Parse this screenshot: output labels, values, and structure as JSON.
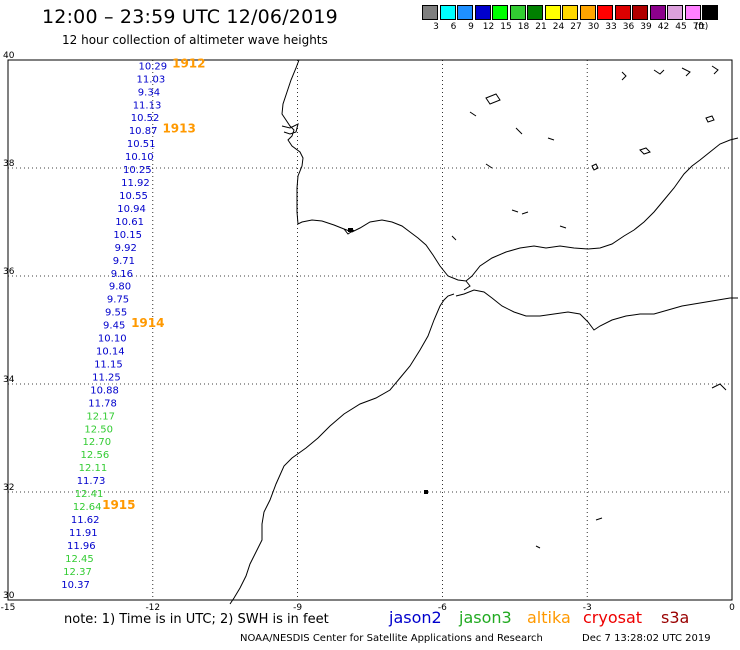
{
  "header": {
    "title": "12:00 – 23:59 UTC 12/06/2019",
    "subtitle": "12 hour collection of altimeter wave heights"
  },
  "colorbar": {
    "unit": "(ft)",
    "levels": [
      {
        "label": "3",
        "color": "#7f7f7f"
      },
      {
        "label": "6",
        "color": "#00ffff"
      },
      {
        "label": "9",
        "color": "#1e90ff"
      },
      {
        "label": "12",
        "color": "#0000cd"
      },
      {
        "label": "15",
        "color": "#00ff00"
      },
      {
        "label": "18",
        "color": "#32cd32"
      },
      {
        "label": "21",
        "color": "#008000"
      },
      {
        "label": "24",
        "color": "#ffff00"
      },
      {
        "label": "27",
        "color": "#ffd700"
      },
      {
        "label": "30",
        "color": "#ffa500"
      },
      {
        "label": "33",
        "color": "#ff0000"
      },
      {
        "label": "36",
        "color": "#dc0000"
      },
      {
        "label": "39",
        "color": "#b00000"
      },
      {
        "label": "42",
        "color": "#8b008b"
      },
      {
        "label": "45",
        "color": "#dda0dd"
      },
      {
        "label": "70",
        "color": "#ff80ff"
      },
      {
        "label": "",
        "color": "#000000"
      }
    ]
  },
  "map": {
    "lat_range": [
      30,
      40
    ],
    "lon_range": [
      -15,
      0
    ],
    "lat_ticks": [
      "40",
      "38",
      "36",
      "34",
      "32",
      "30"
    ],
    "lon_ticks": [
      "-15",
      "-12",
      "-9",
      "-6",
      "-3",
      "0"
    ],
    "grid": true
  },
  "chart_data": {
    "type": "scatter",
    "xlabel": "",
    "ylabel": "",
    "xlim": [
      -15,
      0
    ],
    "ylim": [
      30,
      40
    ],
    "series": [
      {
        "name": "jason2",
        "color": "#0000cc"
      },
      {
        "name": "jason3",
        "color": "#33cc33"
      },
      {
        "name": "altika",
        "color": "#ff9900"
      },
      {
        "name": "cryosat",
        "color": "#ee0000"
      },
      {
        "name": "s3a",
        "color": "#b00000"
      }
    ],
    "points": [
      {
        "lon": -12.0,
        "lat": 39.9,
        "value": "10.29",
        "series": "jason2"
      },
      {
        "lon": -12.04,
        "lat": 39.66,
        "value": "11.03",
        "series": "jason2"
      },
      {
        "lon": -12.08,
        "lat": 39.42,
        "value": "9.34",
        "series": "jason2"
      },
      {
        "lon": -12.12,
        "lat": 39.18,
        "value": "11.13",
        "series": "jason2"
      },
      {
        "lon": -12.16,
        "lat": 38.94,
        "value": "10.52",
        "series": "jason2"
      },
      {
        "lon": -12.2,
        "lat": 38.7,
        "value": "10.87",
        "series": "jason2"
      },
      {
        "lon": -12.24,
        "lat": 38.46,
        "value": "10.51",
        "series": "jason2"
      },
      {
        "lon": -12.28,
        "lat": 38.22,
        "value": "10.10",
        "series": "jason2"
      },
      {
        "lon": -12.32,
        "lat": 37.98,
        "value": "10.25",
        "series": "jason2"
      },
      {
        "lon": -12.36,
        "lat": 37.74,
        "value": "11.92",
        "series": "jason2"
      },
      {
        "lon": -12.4,
        "lat": 37.5,
        "value": "10.55",
        "series": "jason2"
      },
      {
        "lon": -12.44,
        "lat": 37.26,
        "value": "10.94",
        "series": "jason2"
      },
      {
        "lon": -12.48,
        "lat": 37.02,
        "value": "10.61",
        "series": "jason2"
      },
      {
        "lon": -12.52,
        "lat": 36.78,
        "value": "10.15",
        "series": "jason2"
      },
      {
        "lon": -12.56,
        "lat": 36.54,
        "value": "9.92",
        "series": "jason2"
      },
      {
        "lon": -12.6,
        "lat": 36.3,
        "value": "9.71",
        "series": "jason2"
      },
      {
        "lon": -12.64,
        "lat": 36.06,
        "value": "9.16",
        "series": "jason2"
      },
      {
        "lon": -12.68,
        "lat": 35.82,
        "value": "9.80",
        "series": "jason2"
      },
      {
        "lon": -12.72,
        "lat": 35.58,
        "value": "9.75",
        "series": "jason2"
      },
      {
        "lon": -12.76,
        "lat": 35.34,
        "value": "9.55",
        "series": "jason2"
      },
      {
        "lon": -12.8,
        "lat": 35.1,
        "value": "9.45",
        "series": "jason2"
      },
      {
        "lon": -12.84,
        "lat": 34.86,
        "value": "10.10",
        "series": "jason2"
      },
      {
        "lon": -12.88,
        "lat": 34.62,
        "value": "10.14",
        "series": "jason2"
      },
      {
        "lon": -12.92,
        "lat": 34.38,
        "value": "11.15",
        "series": "jason2"
      },
      {
        "lon": -12.96,
        "lat": 34.14,
        "value": "11.25",
        "series": "jason2"
      },
      {
        "lon": -13.0,
        "lat": 33.9,
        "value": "10.88",
        "series": "jason2"
      },
      {
        "lon": -13.04,
        "lat": 33.66,
        "value": "11.78",
        "series": "jason2"
      },
      {
        "lon": -13.08,
        "lat": 33.42,
        "value": "12.17",
        "series": "jason3"
      },
      {
        "lon": -13.12,
        "lat": 33.18,
        "value": "12.50",
        "series": "jason3"
      },
      {
        "lon": -13.16,
        "lat": 32.94,
        "value": "12.70",
        "series": "jason3"
      },
      {
        "lon": -13.2,
        "lat": 32.7,
        "value": "12.56",
        "series": "jason3"
      },
      {
        "lon": -13.24,
        "lat": 32.46,
        "value": "12.11",
        "series": "jason3"
      },
      {
        "lon": -13.28,
        "lat": 32.22,
        "value": "11.73",
        "series": "jason2"
      },
      {
        "lon": -13.32,
        "lat": 31.98,
        "value": "12.41",
        "series": "jason3"
      },
      {
        "lon": -13.36,
        "lat": 31.74,
        "value": "12.64",
        "series": "jason3"
      },
      {
        "lon": -13.4,
        "lat": 31.5,
        "value": "11.62",
        "series": "jason2"
      },
      {
        "lon": -13.44,
        "lat": 31.26,
        "value": "11.91",
        "series": "jason2"
      },
      {
        "lon": -13.48,
        "lat": 31.02,
        "value": "11.96",
        "series": "jason2"
      },
      {
        "lon": -13.52,
        "lat": 30.78,
        "value": "12.45",
        "series": "jason3"
      },
      {
        "lon": -13.56,
        "lat": 30.54,
        "value": "12.37",
        "series": "jason3"
      },
      {
        "lon": -13.6,
        "lat": 30.3,
        "value": "10.37",
        "series": "jason2"
      }
    ],
    "buoy_labels": [
      {
        "text": "1912",
        "lon": -11.6,
        "lat": 39.95
      },
      {
        "text": "1913",
        "lon": -11.8,
        "lat": 38.75
      },
      {
        "text": "1914",
        "lon": -12.45,
        "lat": 35.15
      },
      {
        "text": "1915",
        "lon": -13.05,
        "lat": 31.78
      }
    ]
  },
  "notes": {
    "text": "note:  1) Time is in UTC; 2) SWH is in feet"
  },
  "legend": [
    {
      "label": "jason2",
      "color": "#0000cc"
    },
    {
      "label": "jason3",
      "color": "#22aa22"
    },
    {
      "label": "altika",
      "color": "#ff9900"
    },
    {
      "label": "cryosat",
      "color": "#ee0000"
    },
    {
      "label": "s3a",
      "color": "#990000"
    }
  ],
  "footer": {
    "credit": "NOAA/NESDIS Center for Satellite Applications and Research",
    "date": "Dec  7 13:28:02 UTC 2019"
  }
}
